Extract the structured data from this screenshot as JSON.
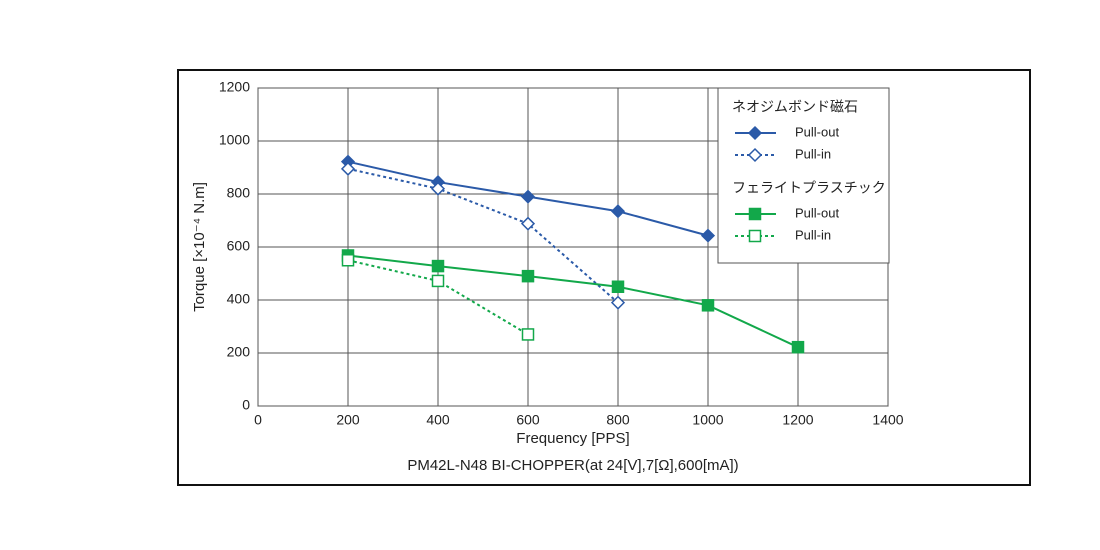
{
  "chart_data": {
    "type": "line",
    "title": "PM42L-N48 BI-CHOPPER(at 24[V],7[Ω],600[mA])",
    "x_label": "Frequency [PPS]",
    "y_label": "Torque [×10⁻⁴ N.m]",
    "legend_titles": [
      "ネオジムボンド磁石",
      "フェライトプラスチック"
    ],
    "series": [
      {
        "name": "Pull-out",
        "color": "#2b5aa8",
        "marker": "diamond",
        "filled": true,
        "dashed": false,
        "x": [
          200,
          400,
          600,
          800,
          1000
        ],
        "values": [
          922,
          845,
          790,
          735,
          643
        ]
      },
      {
        "name": "Pull-in",
        "color": "#2b5aa8",
        "marker": "diamond",
        "filled": false,
        "dashed": true,
        "x": [
          200,
          400,
          600,
          800
        ],
        "values": [
          895,
          820,
          688,
          390
        ]
      },
      {
        "name": "Pull-out",
        "color": "#12a84a",
        "marker": "square",
        "filled": true,
        "dashed": false,
        "x": [
          200,
          400,
          600,
          800,
          1000,
          1200
        ],
        "values": [
          568,
          528,
          490,
          450,
          380,
          222
        ]
      },
      {
        "name": "Pull-in",
        "color": "#12a84a",
        "marker": "square",
        "filled": false,
        "dashed": true,
        "x": [
          200,
          400,
          600
        ],
        "values": [
          550,
          472,
          270
        ]
      }
    ],
    "xlim": [
      0,
      1400
    ],
    "xticks": [
      0,
      200,
      400,
      600,
      800,
      1000,
      1200,
      1400
    ],
    "ylim": [
      0,
      1200
    ],
    "yticks": [
      0,
      200,
      400,
      600,
      800,
      1000,
      1200
    ],
    "grid": true
  }
}
